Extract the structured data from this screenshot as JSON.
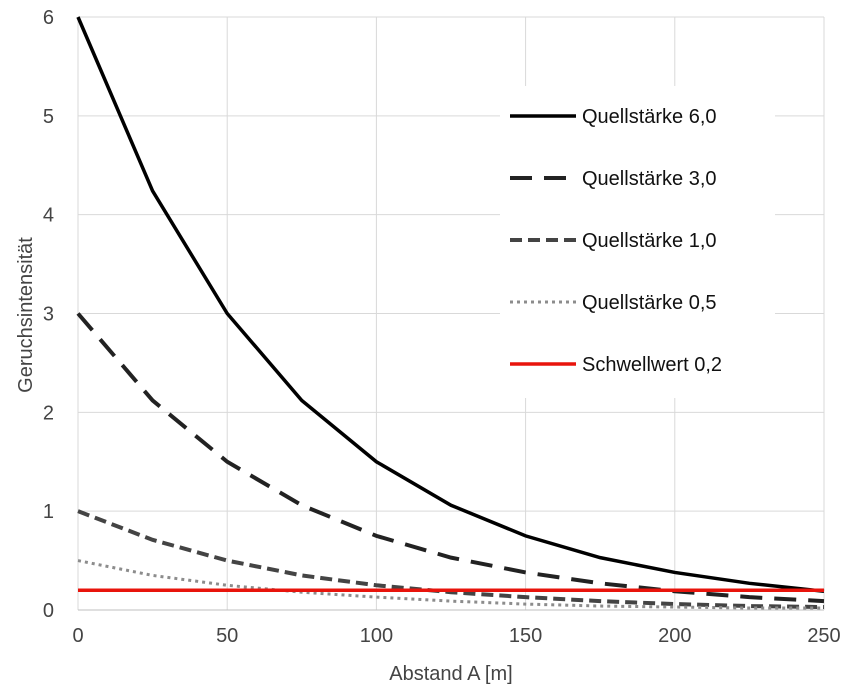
{
  "chart_data": {
    "type": "line",
    "title": "",
    "xlabel": "Abstand A [m]",
    "ylabel": "Geruchsintensität",
    "xlim": [
      0,
      250
    ],
    "ylim": [
      0,
      6
    ],
    "xticks": [
      "0",
      "50",
      "100",
      "150",
      "200",
      "250"
    ],
    "yticks": [
      "0",
      "1",
      "2",
      "3",
      "4",
      "5",
      "6"
    ],
    "grid": true,
    "legend_position": "right",
    "x": [
      0,
      25,
      50,
      75,
      100,
      125,
      150,
      175,
      200,
      225,
      250
    ],
    "series": [
      {
        "name": "Quellstärke 6,0",
        "style": "solid",
        "color": "#000000",
        "values": [
          6.0,
          4.24,
          3.0,
          2.12,
          1.5,
          1.06,
          0.75,
          0.53,
          0.38,
          0.27,
          0.19
        ]
      },
      {
        "name": "Quellstärke 3,0",
        "style": "long-dash",
        "color": "#222222",
        "values": [
          3.0,
          2.12,
          1.5,
          1.06,
          0.75,
          0.53,
          0.38,
          0.27,
          0.19,
          0.13,
          0.09
        ]
      },
      {
        "name": "Quellstärke 1,0",
        "style": "dash",
        "color": "#444444",
        "values": [
          1.0,
          0.71,
          0.5,
          0.35,
          0.25,
          0.18,
          0.13,
          0.09,
          0.06,
          0.04,
          0.03
        ]
      },
      {
        "name": "Quellstärke 0,5",
        "style": "dot",
        "color": "#8c8c8c",
        "values": [
          0.5,
          0.35,
          0.25,
          0.18,
          0.13,
          0.09,
          0.06,
          0.04,
          0.03,
          0.02,
          0.02
        ]
      },
      {
        "name": "Schwellwert 0,2",
        "style": "solid",
        "color": "#e8140c",
        "values": [
          0.2,
          0.2,
          0.2,
          0.2,
          0.2,
          0.2,
          0.2,
          0.2,
          0.2,
          0.2,
          0.2
        ]
      }
    ]
  }
}
